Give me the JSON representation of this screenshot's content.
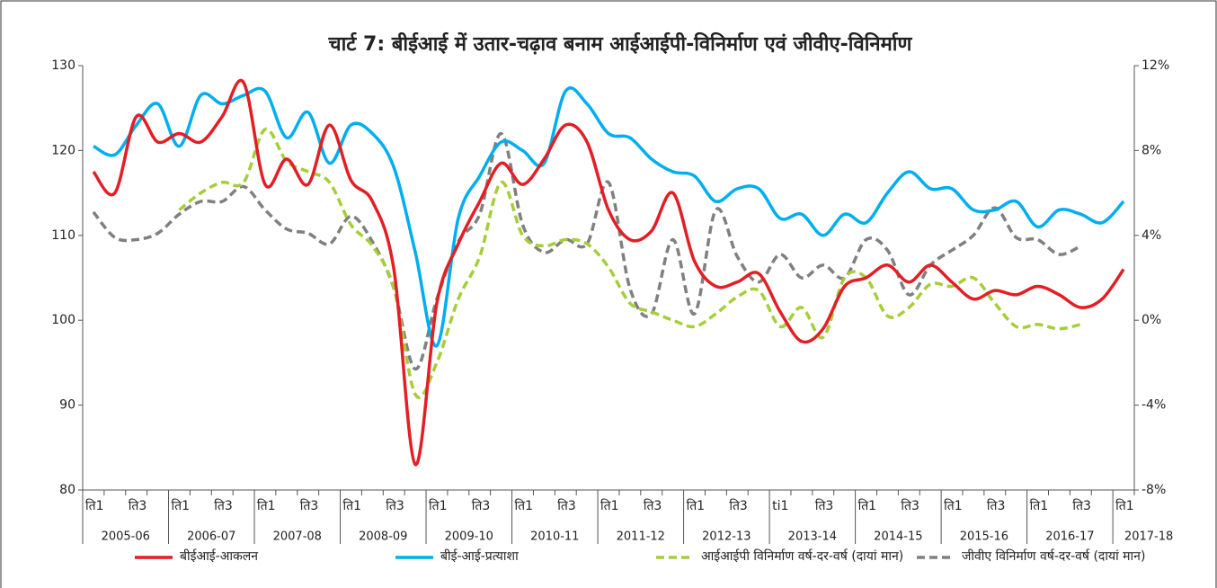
{
  "chart_data": {
    "type": "line",
    "title": "चार्ट 7: बीईआई में उतार-चढ़ाव बनाम आईआईपी-विनिर्माण एवं जीवीए-विनिर्माण",
    "categories": [
      "ति1",
      null,
      "ति3",
      null,
      "ति1",
      null,
      "ति3",
      null,
      "ति1",
      null,
      "ति3",
      null,
      "ति1",
      null,
      "ति3",
      null,
      "ति1",
      null,
      "ति3",
      null,
      "ति1",
      null,
      "ति3",
      null,
      "ति1",
      null,
      "ति3",
      null,
      "ति1",
      null,
      "ति3",
      null,
      "ti1",
      null,
      "ति3",
      null,
      "ति1",
      null,
      "ति3",
      null,
      "ति1",
      null,
      "ति3",
      null,
      "ति1",
      null,
      "ति3",
      null,
      "ति1"
    ],
    "year_groups": [
      "2005-06",
      "2006-07",
      "2007-08",
      "2008-09",
      "2009-10",
      "2010-11",
      "2011-12",
      "2012-13",
      "2013-14",
      "2014-15",
      "2015-16",
      "2016-17",
      "2017-18"
    ],
    "ylim": [
      80,
      130
    ],
    "yticks": [
      80,
      90,
      100,
      110,
      120,
      130
    ],
    "y2lim": [
      -8,
      12
    ],
    "y2ticks": [
      {
        "value": -8,
        "label": "-8%"
      },
      {
        "value": -4,
        "label": "-4%"
      },
      {
        "value": 0,
        "label": "0%"
      },
      {
        "value": 4,
        "label": "4%"
      },
      {
        "value": 8,
        "label": "8%"
      },
      {
        "value": 12,
        "label": "12%"
      }
    ],
    "series": [
      {
        "name": "बीईआई-आकलन",
        "color": "#e31e24",
        "values": [
          117.5,
          115,
          124,
          121,
          122,
          121,
          124,
          128,
          116,
          119,
          116,
          123,
          116.5,
          114,
          106,
          83,
          102,
          109,
          114,
          118.5,
          116,
          119,
          123,
          121,
          113,
          109.5,
          110.5,
          115,
          107,
          104,
          104.5,
          105.5,
          101,
          97.5,
          99,
          104,
          105,
          106.5,
          104.5,
          106.5,
          104.5,
          102.5,
          103.5,
          103,
          104,
          103,
          101.5,
          102.5,
          106
        ]
      },
      {
        "name": "बीई-आई-प्रत्याशा",
        "color": "#00aeef",
        "values": [
          120.5,
          119.5,
          123,
          125.5,
          120.5,
          126.5,
          125.5,
          126.5,
          127,
          121.5,
          124.5,
          118.5,
          123,
          122,
          118,
          108,
          97,
          112,
          117,
          121,
          120,
          118.5,
          127,
          125.5,
          122,
          121.5,
          119,
          117.5,
          117,
          114,
          115.5,
          115.5,
          112,
          112.5,
          110,
          112.5,
          111.5,
          115,
          117.5,
          115.5,
          115.5,
          113,
          113,
          114,
          111,
          113,
          112.5,
          111.5,
          114
        ]
      },
      {
        "name": "आईआईपी विनिर्माण वर्ष-दर-वर्ष (दायां मान)",
        "color": "#a6ce39",
        "dashed": true,
        "axis": "y2",
        "values": [
          null,
          null,
          null,
          null,
          5.2,
          6,
          6.5,
          6.5,
          9,
          7.5,
          7,
          6.5,
          4.5,
          3.5,
          1.5,
          -3.5,
          -2,
          1,
          3,
          6.5,
          4,
          3.5,
          3.8,
          3.6,
          2.5,
          0.8,
          0.4,
          0,
          -0.3,
          0.3,
          1.1,
          1.4,
          -0.3,
          0.6,
          -0.8,
          2,
          2,
          0.2,
          0.6,
          1.7,
          1.6,
          2,
          0.8,
          -0.3,
          -0.2,
          -0.4,
          -0.2,
          null,
          null
        ]
      },
      {
        "name": "जीवीए विनिर्माण वर्ष-दर-वर्ष (दायां मान)",
        "color": "#808080",
        "dashed": true,
        "axis": "y2",
        "values": [
          5.1,
          3.9,
          3.8,
          4.1,
          5,
          5.6,
          5.6,
          6.3,
          5.2,
          4.3,
          4.1,
          3.6,
          4.9,
          3.7,
          1.5,
          -2.3,
          1,
          3.7,
          5,
          8.8,
          4.5,
          3.2,
          3.8,
          3.6,
          6.5,
          1.5,
          0.3,
          3.8,
          0.3,
          5.2,
          3,
          1.8,
          3.1,
          2,
          2.6,
          2,
          3.8,
          3.3,
          1.2,
          2.6,
          3.3,
          4,
          5.3,
          3.9,
          3.8,
          3.1,
          3.5,
          null,
          null
        ]
      }
    ]
  }
}
